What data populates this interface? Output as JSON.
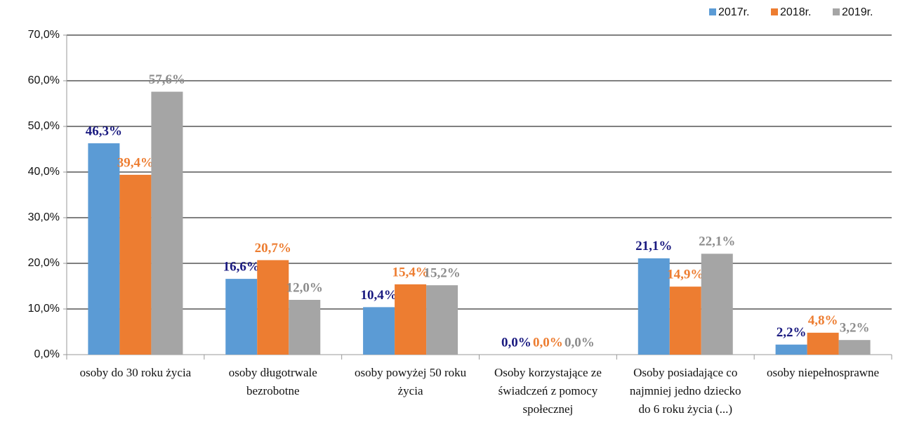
{
  "chart_data": {
    "type": "bar",
    "categories": [
      "osoby do 30 roku życia",
      "osoby długotrwale bezrobotne",
      "osoby powyżej 50 roku życia",
      "Osoby korzystające ze świadczeń z pomocy społecznej",
      "Osoby posiadające co najmniej jedno dziecko do 6 roku życia (...)",
      "osoby niepełnosprawne"
    ],
    "series": [
      {
        "name": "2017r.",
        "color": "#5b9bd5",
        "label_color": "#1a1a80",
        "values": [
          46.3,
          16.6,
          10.4,
          0.0,
          21.1,
          2.2
        ],
        "value_labels": [
          "46,3%",
          "16,6%",
          "10,4%",
          "0,0%",
          "21,1%",
          "2,2%"
        ]
      },
      {
        "name": "2018r.",
        "color": "#ed7d31",
        "label_color": "#ed7d31",
        "values": [
          39.4,
          20.7,
          15.4,
          0.0,
          14.9,
          4.8
        ],
        "value_labels": [
          "39,4%",
          "20,7%",
          "15,4%",
          "0,0%",
          "14,9%",
          "4,8%"
        ]
      },
      {
        "name": "2019r.",
        "color": "#a5a5a5",
        "label_color": "#8c8c8c",
        "values": [
          57.6,
          12.0,
          15.2,
          0.0,
          22.1,
          3.2
        ],
        "value_labels": [
          "57,6%",
          "12,0%",
          "15,2%",
          "0,0%",
          "22,1%",
          "3,2%"
        ]
      }
    ],
    "ylim": [
      0,
      70
    ],
    "yticks": [
      {
        "value": 0,
        "label": "0,0%"
      },
      {
        "value": 10,
        "label": "10,0%"
      },
      {
        "value": 20,
        "label": "20,0%"
      },
      {
        "value": 30,
        "label": "30,0%"
      },
      {
        "value": 40,
        "label": "40,0%"
      },
      {
        "value": 50,
        "label": "50,0%"
      },
      {
        "value": 60,
        "label": "60,0%"
      },
      {
        "value": 70,
        "label": "70,0%"
      }
    ],
    "grid": true,
    "legend": "top-right"
  }
}
